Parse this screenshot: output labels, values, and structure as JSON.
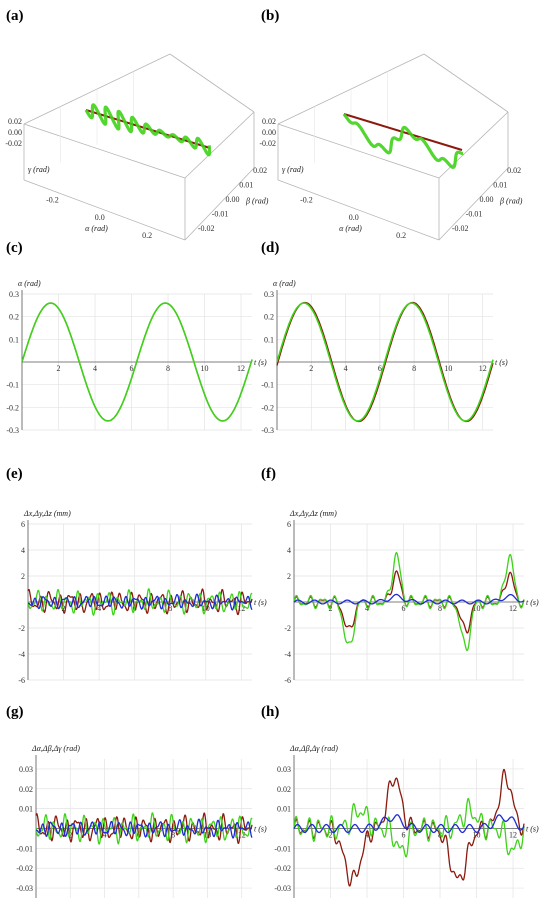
{
  "panels": [
    {
      "id": "a",
      "label": "(a)"
    },
    {
      "id": "b",
      "label": "(b)"
    },
    {
      "id": "c",
      "label": "(c)"
    },
    {
      "id": "d",
      "label": "(d)"
    },
    {
      "id": "e",
      "label": "(e)"
    },
    {
      "id": "f",
      "label": "(f)"
    },
    {
      "id": "g",
      "label": "(g)"
    },
    {
      "id": "h",
      "label": "(h)"
    }
  ],
  "colors": {
    "red": "#8b1a0e",
    "green": "#3fd21a",
    "blue": "#1f2ad6",
    "grid": "#e3e3e3",
    "axis": "#555555"
  },
  "chart_data": [
    {
      "panel": "a",
      "type": "line3d",
      "xlabel": "α (rad)",
      "ylabel": "β (rad)",
      "zlabel": "γ (rad)",
      "x_ticks": [
        "-0.2",
        "0.0",
        "0.2"
      ],
      "y_ticks": [
        "-0.02",
        "-0.01",
        "0.00",
        "0.01",
        "0.02"
      ],
      "z_ticks": [
        "-0.02",
        "0.00",
        "0.02"
      ],
      "xlim": [
        -0.3,
        0.3
      ],
      "ylim": [
        -0.02,
        0.02
      ],
      "zlim": [
        -0.02,
        0.02
      ],
      "series": [
        {
          "color": "red"
        },
        {
          "color": "green"
        }
      ]
    },
    {
      "panel": "b",
      "type": "line3d",
      "xlabel": "α (rad)",
      "ylabel": "β (rad)",
      "zlabel": "γ (rad)",
      "x_ticks": [
        "-0.2",
        "0.0",
        "0.2"
      ],
      "y_ticks": [
        "-0.02",
        "-0.01",
        "0.00",
        "0.01",
        "0.02"
      ],
      "z_ticks": [
        "-0.02",
        "0.00",
        "0.02"
      ],
      "xlim": [
        -0.3,
        0.3
      ],
      "ylim": [
        -0.02,
        0.02
      ],
      "zlim": [
        -0.02,
        0.02
      ],
      "series": [
        {
          "color": "red"
        },
        {
          "color": "green"
        }
      ]
    },
    {
      "panel": "c",
      "type": "line",
      "ylabel": "α (rad)",
      "xlabel": "t (s)",
      "xlim": [
        0,
        12.6
      ],
      "ylim": [
        -0.3,
        0.3
      ],
      "x_ticks": [
        2,
        4,
        6,
        8,
        10,
        12
      ],
      "y_ticks": [
        0.3,
        0.2,
        0.1,
        -0.1,
        -0.2,
        -0.3
      ],
      "tick_decimals": 1,
      "signal": "sine",
      "amplitude": 0.26,
      "period": 6.28
    },
    {
      "panel": "d",
      "type": "line",
      "ylabel": "α (rad)",
      "xlabel": "t (s)",
      "xlim": [
        0,
        12.6
      ],
      "ylim": [
        -0.3,
        0.3
      ],
      "x_ticks": [
        2,
        4,
        6,
        8,
        10,
        12
      ],
      "y_ticks": [
        0.3,
        0.2,
        0.1,
        -0.1,
        -0.2,
        -0.3
      ],
      "tick_decimals": 1,
      "signal": "sine",
      "amplitude": 0.26,
      "period": 6.28
    },
    {
      "panel": "e",
      "type": "line",
      "ylabel": "Δx,Δy,Δz (mm)",
      "xlabel": "t (s)",
      "xlim": [
        0,
        12.6
      ],
      "ylim": [
        -6,
        6
      ],
      "x_ticks": [
        2,
        4,
        6,
        8,
        10,
        12
      ],
      "y_ticks": [
        6,
        4,
        2,
        -2,
        -4,
        -6
      ],
      "tick_decimals": 0,
      "signal": "noise_small",
      "amplitude": 0.9
    },
    {
      "panel": "f",
      "type": "line",
      "ylabel": "Δx,Δy,Δz (mm)",
      "xlabel": "t (s)",
      "xlim": [
        0,
        12.6
      ],
      "ylim": [
        -6,
        6
      ],
      "x_ticks": [
        2,
        4,
        6,
        8,
        10,
        12
      ],
      "y_ticks": [
        6,
        4,
        2,
        -2,
        -4,
        -6
      ],
      "tick_decimals": 0,
      "signal": "pos_spikes",
      "amplitude": 3.6
    },
    {
      "panel": "g",
      "type": "line",
      "ylabel": "Δα,Δβ,Δγ (rad)",
      "xlabel": "t (s)",
      "xlim": [
        0,
        12.6
      ],
      "ylim": [
        -0.035,
        0.035
      ],
      "x_ticks": [
        2,
        4,
        6,
        8,
        10,
        12
      ],
      "y_ticks": [
        0.03,
        0.02,
        0.01,
        -0.01,
        -0.02,
        -0.03
      ],
      "tick_decimals": 2,
      "signal": "noise_small",
      "amplitude": 0.007
    },
    {
      "panel": "h",
      "type": "line",
      "ylabel": "Δα,Δβ,Δγ (rad)",
      "xlabel": "t (s)",
      "xlim": [
        0,
        12.6
      ],
      "ylim": [
        -0.035,
        0.035
      ],
      "x_ticks": [
        2,
        4,
        6,
        8,
        10,
        12
      ],
      "y_ticks": [
        0.03,
        0.02,
        0.01,
        -0.01,
        -0.02,
        -0.03
      ],
      "tick_decimals": 2,
      "signal": "ang_spikes",
      "amplitude": 0.026
    }
  ]
}
